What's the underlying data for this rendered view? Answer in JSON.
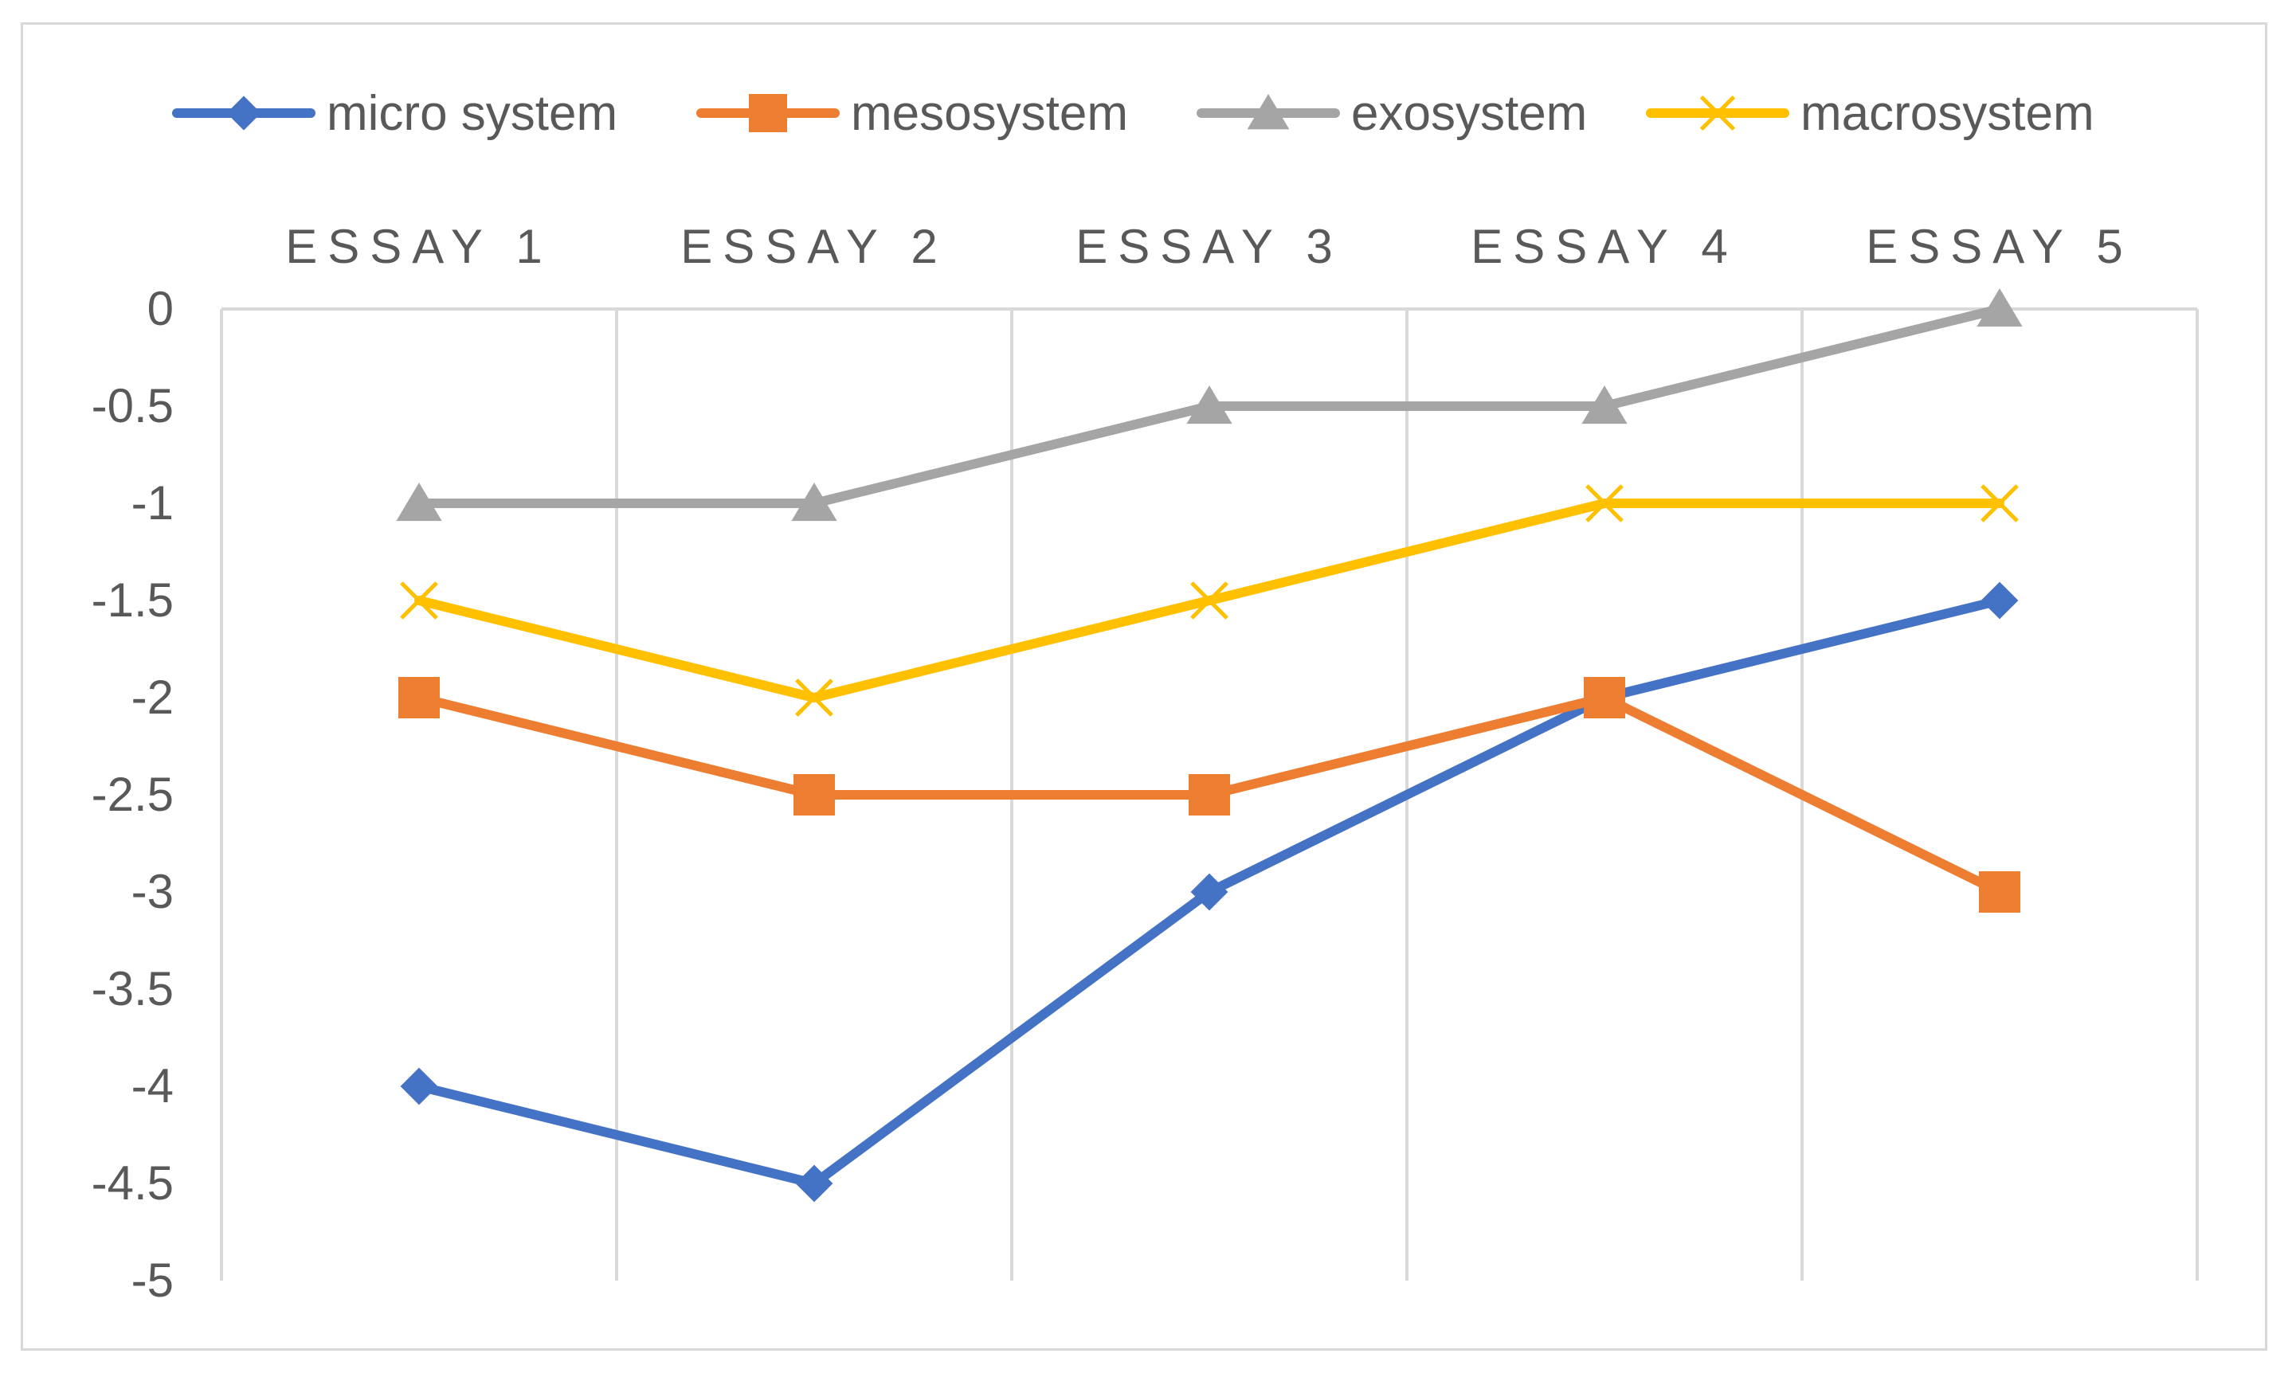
{
  "chart_data": {
    "type": "line",
    "categories": [
      "ESSAY 1",
      "ESSAY 2",
      "ESSAY 3",
      "ESSAY 4",
      "ESSAY 5"
    ],
    "series": [
      {
        "name": "micro system",
        "values": [
          -4,
          -4.5,
          -3,
          -2,
          -1.5
        ],
        "color": "#4472c4",
        "marker": "diamond"
      },
      {
        "name": "mesosystem",
        "values": [
          -2,
          -2.5,
          -2.5,
          -2,
          -3
        ],
        "color": "#ed7d31",
        "marker": "square"
      },
      {
        "name": "exosystem",
        "values": [
          -1,
          -1,
          -0.5,
          -0.5,
          0
        ],
        "color": "#a5a5a5",
        "marker": "triangle"
      },
      {
        "name": "macrosystem",
        "values": [
          -1.5,
          -2,
          -1.5,
          -1,
          -1
        ],
        "color": "#ffc000",
        "marker": "x"
      }
    ],
    "yticks": [
      "0",
      "-0.5",
      "-1",
      "-1.5",
      "-2",
      "-2.5",
      "-3",
      "-3.5",
      "-4",
      "-4.5",
      "-5"
    ],
    "ylim": [
      -5,
      0
    ],
    "x_axis_position": "top",
    "legend_position": "top",
    "grid": "vertical",
    "title": "",
    "xlabel": "",
    "ylabel": ""
  }
}
